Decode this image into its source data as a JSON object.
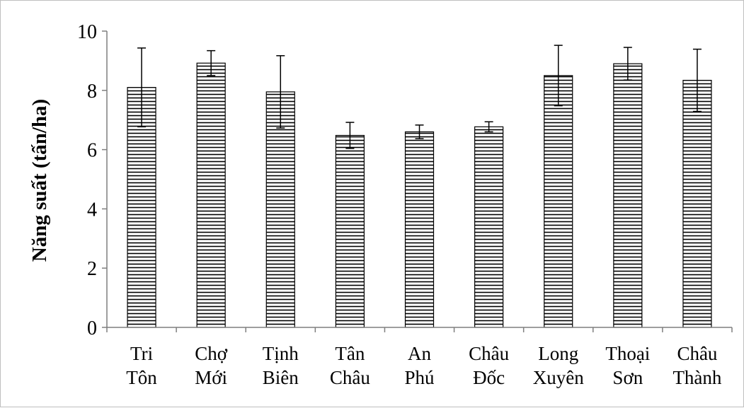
{
  "chart_data": {
    "type": "bar",
    "title": "",
    "xlabel": "",
    "ylabel": "Năng suất (tấn/ha)",
    "ylim": [
      0,
      10
    ],
    "yticks": [
      0,
      2,
      4,
      6,
      8,
      10
    ],
    "grid": false,
    "legend": "none",
    "bar_fill": "horizontal-hatch",
    "categories": [
      [
        "Tri",
        "Tôn"
      ],
      [
        "Chợ",
        "Mới"
      ],
      [
        "Tịnh",
        "Biên"
      ],
      [
        "Tân",
        "Châu"
      ],
      [
        "An",
        "Phú"
      ],
      [
        "Châu",
        "Đốc"
      ],
      [
        "Long",
        "Xuyên"
      ],
      [
        "Thoại",
        "Sơn"
      ],
      [
        "Châu",
        "Thành"
      ]
    ],
    "series": [
      {
        "values": [
          8.1,
          8.92,
          7.95,
          6.48,
          6.6,
          6.77,
          8.5,
          8.9,
          8.34
        ],
        "error": [
          1.33,
          0.42,
          1.22,
          0.44,
          0.23,
          0.17,
          1.02,
          0.55,
          1.05
        ]
      }
    ],
    "colors": {
      "bar_edge": "#000000",
      "hatch": "#000000",
      "axis": "#7f7f7f",
      "background": "#ffffff"
    }
  }
}
